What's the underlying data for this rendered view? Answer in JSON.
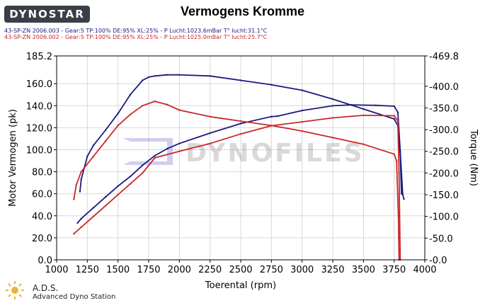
{
  "header": {
    "logo_text": "DYNOSTAR",
    "title": "Vermogens Kromme",
    "run_lines": [
      "43-SP-ZN 2006.003 - Gear:5 TP:100% DE:95% XL:25%   - P Lucht:1023.6mBar T° lucht:31.1°C",
      "43-SP-ZN 2006.002 - Gear:5 TP:100% DE:95% XL:25%   - P Lucht:1025.0mBar T° lucht:25.7°C"
    ]
  },
  "footer": {
    "ads_title": "A.D.S.",
    "ads_subtitle": "Advanced Dyno Station"
  },
  "chart_data": {
    "type": "line",
    "xlabel": "Toerental (rpm)",
    "ylabel_left": "Motor Vermogen (pk)",
    "ylabel_right": "Torque (Nm)",
    "xlim": [
      1000,
      4000
    ],
    "ylim_left": [
      0.0,
      185.2
    ],
    "ylim_right": [
      0.0,
      469.8
    ],
    "x_ticks": [
      1000,
      1250,
      1500,
      1750,
      2000,
      2250,
      2500,
      2750,
      3000,
      3250,
      3500,
      3750,
      4000
    ],
    "y_ticks_left": [
      "0.0",
      "20.0",
      "40.0",
      "60.0",
      "80.0",
      "100.0",
      "120.0",
      "140.0",
      "160.0",
      "185.2"
    ],
    "y_ticks_right": [
      "0.0",
      "50.0",
      "100.0",
      "150.0",
      "200.0",
      "250.0",
      "300.0",
      "350.0",
      "400.0",
      "469.8"
    ],
    "grid": true,
    "watermark": "DYNOFILES",
    "colors": {
      "run_003": "#1a1a80",
      "run_002": "#c8282a"
    },
    "series": [
      {
        "name": "43-SP-ZN 2006.003",
        "quantity": "power",
        "axis": "left",
        "color": "#1a1a80",
        "points": [
          [
            1190,
            62
          ],
          [
            1200,
            73
          ],
          [
            1250,
            94
          ],
          [
            1300,
            104
          ],
          [
            1400,
            118
          ],
          [
            1500,
            133
          ],
          [
            1600,
            150
          ],
          [
            1700,
            163
          ],
          [
            1750,
            166
          ],
          [
            1800,
            167
          ],
          [
            1900,
            168
          ],
          [
            2000,
            168
          ],
          [
            2250,
            167
          ],
          [
            2500,
            163
          ],
          [
            2750,
            159
          ],
          [
            3000,
            154
          ],
          [
            3250,
            146
          ],
          [
            3500,
            137
          ],
          [
            3750,
            128
          ],
          [
            3780,
            122
          ],
          [
            3800,
            95
          ],
          [
            3810,
            60
          ]
        ]
      },
      {
        "name": "43-SP-ZN 2006.003",
        "quantity": "torque",
        "axis": "right",
        "color": "#1a1a80",
        "points": [
          [
            1170,
            85
          ],
          [
            1200,
            95
          ],
          [
            1300,
            120
          ],
          [
            1400,
            145
          ],
          [
            1500,
            170
          ],
          [
            1600,
            192
          ],
          [
            1700,
            218
          ],
          [
            1800,
            240
          ],
          [
            1900,
            256
          ],
          [
            2000,
            268
          ],
          [
            2250,
            292
          ],
          [
            2500,
            314
          ],
          [
            2750,
            330
          ],
          [
            2800,
            331
          ],
          [
            3000,
            344
          ],
          [
            3250,
            355
          ],
          [
            3400,
            357
          ],
          [
            3600,
            356
          ],
          [
            3750,
            354
          ],
          [
            3780,
            340
          ],
          [
            3800,
            250
          ],
          [
            3820,
            150
          ],
          [
            3830,
            140
          ]
        ]
      },
      {
        "name": "43-SP-ZN 2006.002",
        "quantity": "power",
        "axis": "left",
        "color": "#c8282a",
        "points": [
          [
            1140,
            55
          ],
          [
            1160,
            68
          ],
          [
            1200,
            80
          ],
          [
            1300,
            94
          ],
          [
            1400,
            108
          ],
          [
            1500,
            122
          ],
          [
            1600,
            132
          ],
          [
            1700,
            140
          ],
          [
            1800,
            144
          ],
          [
            1900,
            141
          ],
          [
            2000,
            136
          ],
          [
            2250,
            130
          ],
          [
            2500,
            126
          ],
          [
            2750,
            122
          ],
          [
            3000,
            117
          ],
          [
            3250,
            111
          ],
          [
            3500,
            105
          ],
          [
            3750,
            96
          ],
          [
            3770,
            90
          ],
          [
            3785,
            40
          ],
          [
            3790,
            0
          ]
        ]
      },
      {
        "name": "43-SP-ZN 2006.002",
        "quantity": "torque",
        "axis": "right",
        "color": "#c8282a",
        "points": [
          [
            1140,
            60
          ],
          [
            1200,
            75
          ],
          [
            1300,
            100
          ],
          [
            1400,
            125
          ],
          [
            1500,
            150
          ],
          [
            1600,
            175
          ],
          [
            1700,
            200
          ],
          [
            1800,
            235
          ],
          [
            2000,
            250
          ],
          [
            2250,
            268
          ],
          [
            2500,
            290
          ],
          [
            2750,
            309
          ],
          [
            3000,
            318
          ],
          [
            3250,
            327
          ],
          [
            3500,
            333
          ],
          [
            3750,
            332
          ],
          [
            3780,
            320
          ],
          [
            3790,
            200
          ],
          [
            3800,
            0
          ]
        ]
      }
    ]
  }
}
